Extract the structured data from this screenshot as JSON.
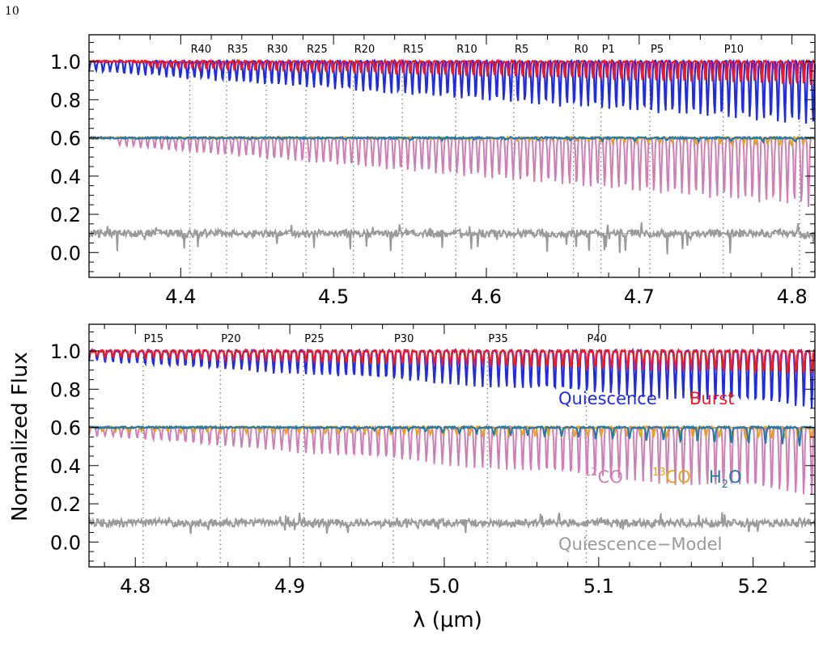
{
  "page_number": "10",
  "colors": {
    "quiescence": "#1f2be8",
    "burst": "#f2182a",
    "co12": "#cf7fb4",
    "co13": "#eaa21e",
    "h2o": "#1f7aa8",
    "residual": "#9a9a9a",
    "line_markers": "#808080"
  },
  "chart_data": [
    {
      "type": "line",
      "panel": "top",
      "xlim": [
        4.34,
        4.815
      ],
      "ylim": [
        -0.13,
        1.14
      ],
      "x_ticks": [
        4.4,
        4.5,
        4.6,
        4.7,
        4.8
      ],
      "x_tick_labels": [
        "4.4",
        "4.5",
        "4.6",
        "4.7",
        "4.8"
      ],
      "y_ticks": [
        0.0,
        0.2,
        0.4,
        0.6,
        0.8,
        1.0
      ],
      "y_tick_labels": [
        "0.0",
        "0.2",
        "0.4",
        "0.6",
        "0.8",
        "1.0"
      ],
      "reference_levels": [
        1.0,
        0.6,
        0.1
      ],
      "line_markers": [
        {
          "label": "R40",
          "x": 4.406
        },
        {
          "label": "R35",
          "x": 4.43
        },
        {
          "label": "R30",
          "x": 4.456
        },
        {
          "label": "R25",
          "x": 4.482
        },
        {
          "label": "R20",
          "x": 4.513
        },
        {
          "label": "R15",
          "x": 4.545
        },
        {
          "label": "R10",
          "x": 4.58
        },
        {
          "label": "R5",
          "x": 4.618
        },
        {
          "label": "R0",
          "x": 4.657
        },
        {
          "label": "P1",
          "x": 4.675
        },
        {
          "label": "P5",
          "x": 4.707
        },
        {
          "label": "P10",
          "x": 4.755
        },
        {
          "label": "",
          "x": 4.805
        }
      ],
      "series": [
        {
          "name": "Quiescence",
          "color_key": "quiescence",
          "continuum": 1.0,
          "line_start": 4.34,
          "line_end": 4.815,
          "depth_min": 0.05,
          "depth_max": 0.33,
          "spacing": 0.0046
        },
        {
          "name": "Burst",
          "color_key": "burst",
          "continuum": 1.0,
          "line_start": 4.38,
          "line_end": 4.815,
          "depth_min": 0.03,
          "depth_max": 0.12,
          "spacing": 0.0046
        },
        {
          "name": "12CO",
          "color_key": "co12",
          "continuum": 0.6,
          "line_start": 4.36,
          "line_end": 4.815,
          "depth_min": 0.04,
          "depth_max": 0.36,
          "spacing": 0.0046
        },
        {
          "name": "13CO",
          "color_key": "co13",
          "continuum": 0.6,
          "line_start": 4.55,
          "line_end": 4.815,
          "depth_min": 0.0,
          "depth_max": 0.04,
          "spacing": 0.0078
        },
        {
          "name": "H2O",
          "color_key": "h2o",
          "continuum": 0.6,
          "line_start": 4.34,
          "line_end": 4.815,
          "depth_min": 0.0,
          "depth_max": 0.02,
          "spacing": 0.021
        },
        {
          "name": "Quiescence-Model",
          "color_key": "residual",
          "continuum": 0.1,
          "line_start": 4.34,
          "line_end": 4.815,
          "depth_min": 0.0,
          "depth_max": 0.1,
          "spacing": 0.008
        }
      ]
    },
    {
      "type": "line",
      "panel": "bottom",
      "xlim": [
        4.77,
        5.24
      ],
      "ylim": [
        -0.13,
        1.14
      ],
      "x_ticks": [
        4.8,
        4.9,
        5.0,
        5.1,
        5.2
      ],
      "x_tick_labels": [
        "4.8",
        "4.9",
        "5.0",
        "5.1",
        "5.2"
      ],
      "y_ticks": [
        0.0,
        0.2,
        0.4,
        0.6,
        0.8,
        1.0
      ],
      "y_tick_labels": [
        "0.0",
        "0.2",
        "0.4",
        "0.6",
        "0.8",
        "1.0"
      ],
      "reference_levels": [
        1.0,
        0.6,
        0.1
      ],
      "line_markers": [
        {
          "label": "P15",
          "x": 4.805
        },
        {
          "label": "P20",
          "x": 4.855
        },
        {
          "label": "P25",
          "x": 4.909
        },
        {
          "label": "P30",
          "x": 4.967
        },
        {
          "label": "P35",
          "x": 5.028
        },
        {
          "label": "P40",
          "x": 5.092
        }
      ],
      "series": [
        {
          "name": "Quiescence",
          "color_key": "quiescence",
          "continuum": 1.0,
          "line_start": 4.77,
          "line_end": 5.24,
          "depth_min": 0.05,
          "depth_max": 0.3,
          "spacing": 0.0052
        },
        {
          "name": "Burst",
          "color_key": "burst",
          "continuum": 1.0,
          "line_start": 4.77,
          "line_end": 5.24,
          "depth_min": 0.03,
          "depth_max": 0.12,
          "spacing": 0.0052
        },
        {
          "name": "12CO",
          "color_key": "co12",
          "continuum": 0.6,
          "line_start": 4.77,
          "line_end": 5.24,
          "depth_min": 0.04,
          "depth_max": 0.36,
          "spacing": 0.0052
        },
        {
          "name": "13CO",
          "color_key": "co13",
          "continuum": 0.6,
          "line_start": 4.77,
          "line_end": 5.24,
          "depth_min": 0.02,
          "depth_max": 0.06,
          "spacing": 0.0085
        },
        {
          "name": "H2O",
          "color_key": "h2o",
          "continuum": 0.6,
          "line_start": 4.9,
          "line_end": 5.24,
          "depth_min": 0.0,
          "depth_max": 0.1,
          "spacing": 0.011
        },
        {
          "name": "Quiescence-Model",
          "color_key": "residual",
          "continuum": 0.1,
          "line_start": 4.77,
          "line_end": 5.24,
          "depth_min": 0.0,
          "depth_max": 0.05,
          "spacing": 0.008
        }
      ]
    }
  ],
  "shared_axes": {
    "ylabel": "Normalized Flux",
    "xlabel": "λ (μm)"
  },
  "legend": {
    "quiescence": "Quiescence",
    "burst": "Burst",
    "co12_sup": "12",
    "co12_main": "CO",
    "co13_sup": "13",
    "co13_main": "CO",
    "h2o_main": "H",
    "h2o_sub": "2",
    "h2o_end": "O",
    "residual": "Quiescence−Model"
  }
}
